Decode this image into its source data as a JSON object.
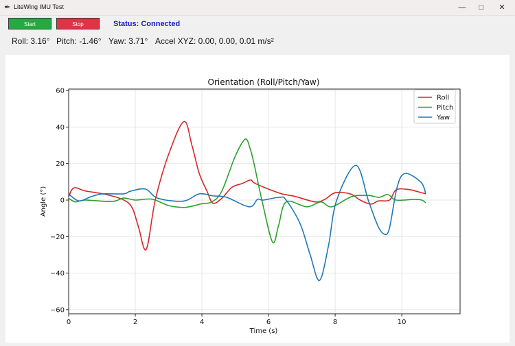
{
  "window": {
    "title": "LiteWing IMU Test",
    "app_icon": "feather-icon",
    "controls": [
      "minimize-icon",
      "maximize-icon",
      "close-icon"
    ]
  },
  "toolbar": {
    "start_label": "Start",
    "start_color": "#28a745",
    "stop_label": "Stop",
    "stop_color": "#dc3545",
    "status": "Status: Connected",
    "status_color": "#1a1acc"
  },
  "readouts": {
    "roll": "Roll: 3.16°",
    "pitch": "Pitch: -1.46°",
    "yaw": "Yaw: 3.71°",
    "accel": "Accel XYZ: 0.00, 0.00, 0.01 m/s²"
  },
  "chart_data": {
    "type": "line",
    "title": "Orientation (Roll/Pitch/Yaw)",
    "xlabel": "Time (s)",
    "ylabel": "Angle (°)",
    "xlim": [
      0,
      11.75
    ],
    "ylim": [
      -62.3,
      60.8
    ],
    "xticks": [
      "0",
      "2",
      "4",
      "6",
      "8",
      "10"
    ],
    "yticks": [
      "60",
      "40",
      "20",
      "0",
      "−20",
      "−40",
      "−60"
    ],
    "grid": true,
    "legend_position": "top-right",
    "series": [
      {
        "name": "Roll",
        "color": "#d62728",
        "points": [
          [
            0,
            2
          ],
          [
            0.16,
            6.7
          ],
          [
            0.5,
            5
          ],
          [
            1.03,
            3.4
          ],
          [
            1.6,
            0.5
          ],
          [
            1.9,
            -4
          ],
          [
            2.1,
            -15
          ],
          [
            2.33,
            -27
          ],
          [
            2.6,
            0
          ],
          [
            3.0,
            25
          ],
          [
            3.46,
            43
          ],
          [
            3.7,
            30
          ],
          [
            3.92,
            14.6
          ],
          [
            4.15,
            5
          ],
          [
            4.33,
            -1.7
          ],
          [
            4.6,
            1
          ],
          [
            4.9,
            7
          ],
          [
            5.2,
            9
          ],
          [
            5.46,
            11
          ],
          [
            5.57,
            9.4
          ],
          [
            6.0,
            6
          ],
          [
            6.4,
            3.4
          ],
          [
            6.8,
            2
          ],
          [
            7.4,
            -1
          ],
          [
            7.7,
            0.5
          ],
          [
            8.0,
            4
          ],
          [
            8.45,
            3.4
          ],
          [
            8.75,
            0
          ],
          [
            9.07,
            -2.2
          ],
          [
            9.3,
            -0.5
          ],
          [
            9.63,
            0
          ],
          [
            9.83,
            5.6
          ],
          [
            10.2,
            5.8
          ],
          [
            10.5,
            4.5
          ],
          [
            10.72,
            3.4
          ]
        ]
      },
      {
        "name": "Pitch",
        "color": "#2ca02c",
        "points": [
          [
            0,
            1
          ],
          [
            0.2,
            -1
          ],
          [
            0.5,
            0
          ],
          [
            1.3,
            -0.8
          ],
          [
            1.65,
            1.1
          ],
          [
            2.0,
            0
          ],
          [
            2.5,
            0.5
          ],
          [
            3.0,
            -3
          ],
          [
            3.5,
            -4
          ],
          [
            4.0,
            -2
          ],
          [
            4.3,
            -1
          ],
          [
            4.6,
            5
          ],
          [
            5.0,
            24
          ],
          [
            5.3,
            33.4
          ],
          [
            5.45,
            28
          ],
          [
            5.57,
            19.5
          ],
          [
            5.8,
            0
          ],
          [
            6.12,
            -23
          ],
          [
            6.3,
            -14
          ],
          [
            6.53,
            -1
          ],
          [
            7.15,
            -3.7
          ],
          [
            7.57,
            -1
          ],
          [
            7.9,
            -3.7
          ],
          [
            8.5,
            1.9
          ],
          [
            9.0,
            2.5
          ],
          [
            9.32,
            1.5
          ],
          [
            9.58,
            3
          ],
          [
            9.83,
            0
          ],
          [
            10.37,
            0.4
          ],
          [
            10.6,
            0
          ],
          [
            10.72,
            -1.5
          ]
        ]
      },
      {
        "name": "Yaw",
        "color": "#1f77b4",
        "points": [
          [
            0,
            3.4
          ],
          [
            0.2,
            0.4
          ],
          [
            0.37,
            -0.4
          ],
          [
            0.68,
            1.9
          ],
          [
            1.03,
            3.4
          ],
          [
            1.65,
            3.4
          ],
          [
            1.86,
            4.9
          ],
          [
            2.31,
            6
          ],
          [
            2.68,
            1
          ],
          [
            3.44,
            -0.6
          ],
          [
            3.92,
            3.4
          ],
          [
            4.33,
            2.3
          ],
          [
            4.74,
            1.5
          ],
          [
            5.42,
            -3.7
          ],
          [
            5.67,
            0.4
          ],
          [
            5.84,
            0
          ],
          [
            6.33,
            1.5
          ],
          [
            6.53,
            0
          ],
          [
            6.95,
            -13
          ],
          [
            7.25,
            -30
          ],
          [
            7.53,
            -44
          ],
          [
            7.8,
            -25
          ],
          [
            8.04,
            -0.4
          ],
          [
            8.62,
            19
          ],
          [
            9.0,
            -0.4
          ],
          [
            9.28,
            -14
          ],
          [
            9.48,
            -18.7
          ],
          [
            9.63,
            -15.4
          ],
          [
            9.86,
            7
          ],
          [
            10.1,
            14.6
          ],
          [
            10.58,
            9.7
          ],
          [
            10.72,
            3.4
          ]
        ]
      }
    ]
  }
}
